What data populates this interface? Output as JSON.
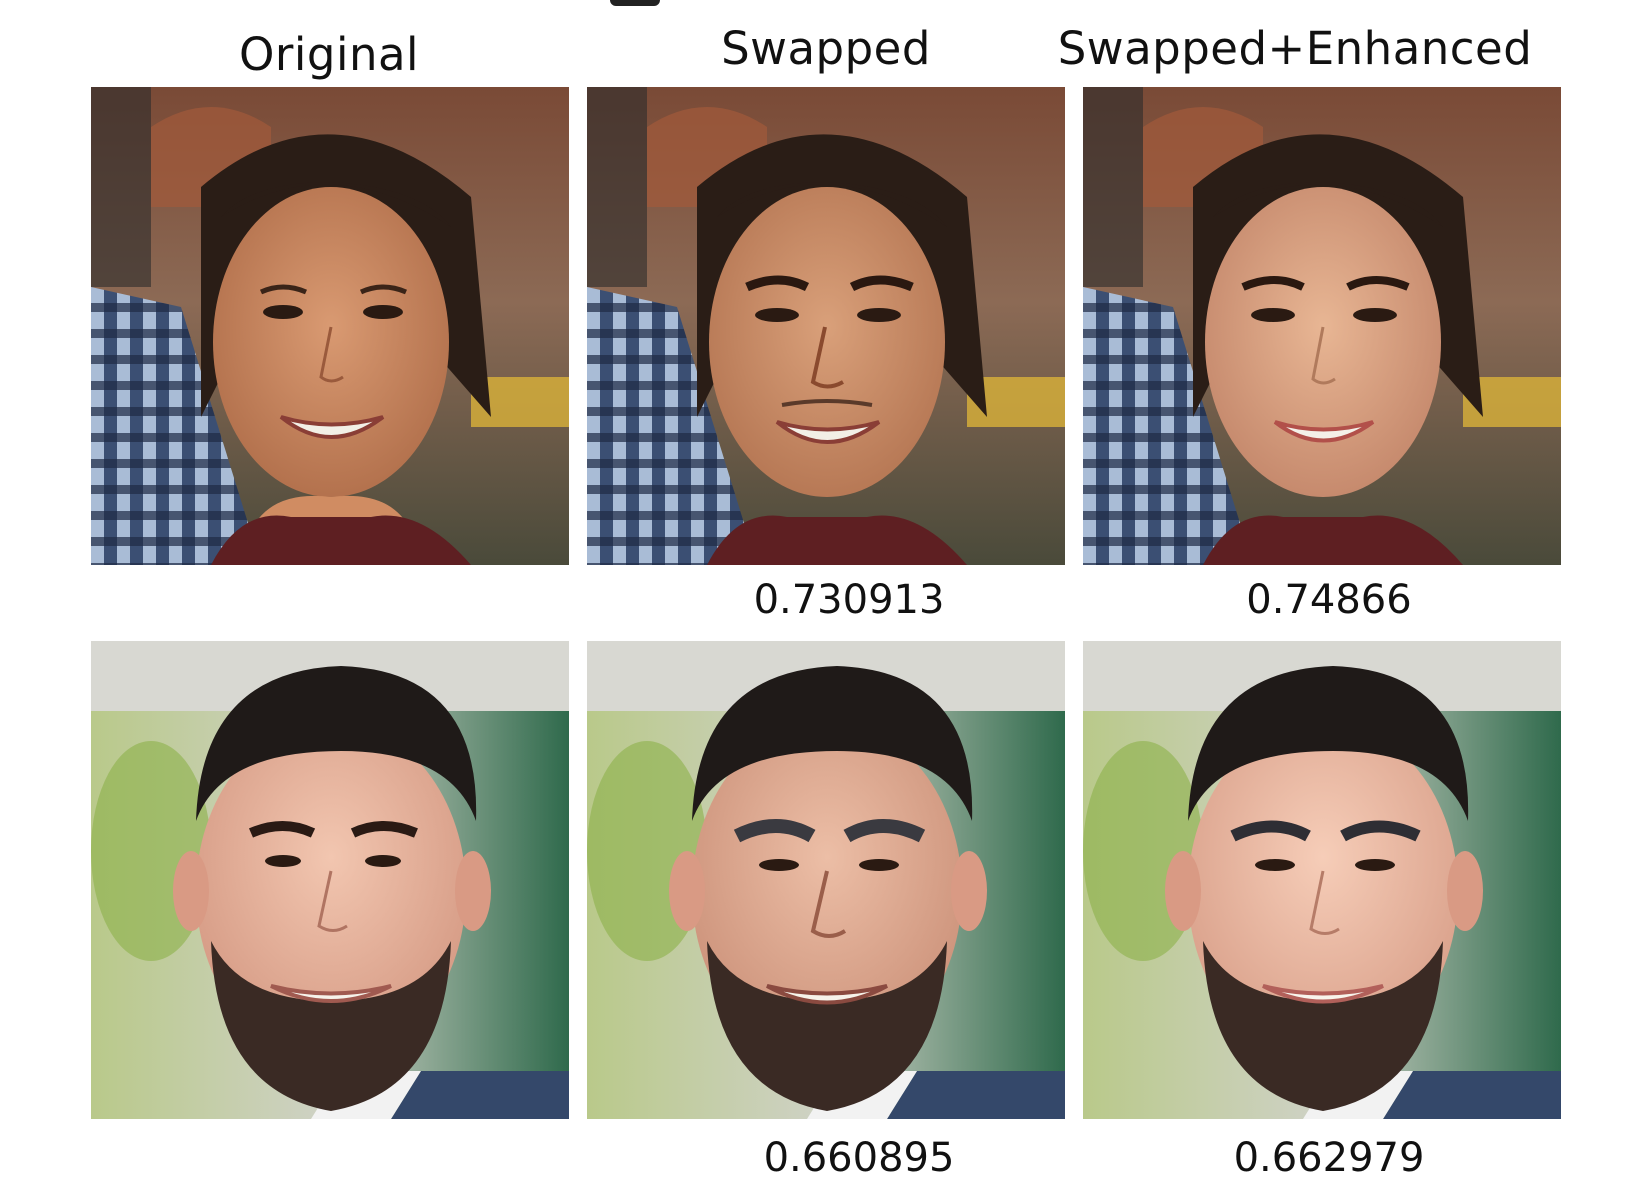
{
  "headers": {
    "original": "Original",
    "swapped": "Swapped",
    "enhanced": "Swapped+Enhanced"
  },
  "rows": [
    {
      "subject": "young-woman-smiling",
      "scores": {
        "swapped": "0.730913",
        "enhanced": "0.74866"
      }
    },
    {
      "subject": "bearded-man-smiling",
      "scores": {
        "swapped": "0.660895",
        "enhanced": "0.662979"
      }
    }
  ],
  "colors": {
    "background": "#ffffff",
    "text": "#111111"
  }
}
